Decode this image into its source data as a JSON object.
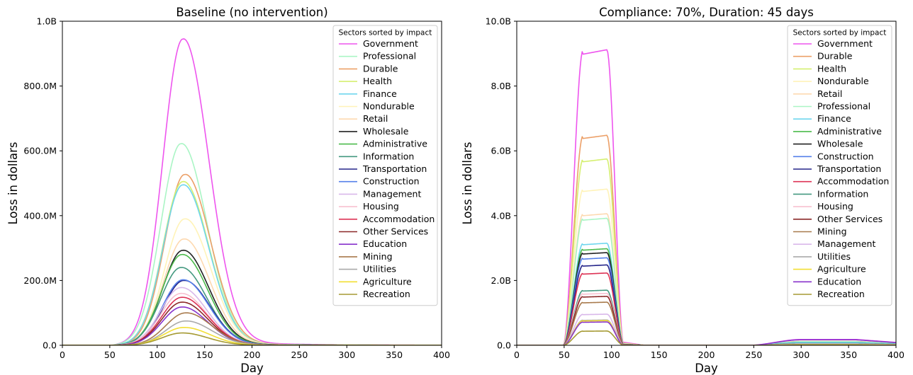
{
  "chart_data": [
    {
      "type": "line",
      "title": "Baseline (no intervention)",
      "xlabel": "Day",
      "ylabel": "Loss in dollars",
      "xlim": [
        0,
        400
      ],
      "ylim": [
        0,
        1000000000
      ],
      "xticks": [
        0,
        50,
        100,
        150,
        200,
        250,
        300,
        350,
        400
      ],
      "xtick_labels": [
        "0",
        "50",
        "100",
        "150",
        "200",
        "250",
        "300",
        "350",
        "400"
      ],
      "yticks": [
        0,
        200000000,
        400000000,
        600000000,
        800000000,
        1000000000
      ],
      "ytick_labels": [
        "0.0",
        "200.0M",
        "400.0M",
        "600.0M",
        "800.0M",
        "1.0B"
      ],
      "grid": false,
      "legend_title": "Sectors sorted by impact",
      "legend_position": "top-right",
      "curve_model": "epidemic",
      "series": [
        {
          "name": "Government",
          "color": "#ee55ee",
          "peak": 945000000,
          "peak_day": 127
        },
        {
          "name": "Professional",
          "color": "#aaf5c5",
          "peak": 622000000,
          "peak_day": 125
        },
        {
          "name": "Durable",
          "color": "#eca068",
          "peak": 527000000,
          "peak_day": 129
        },
        {
          "name": "Health",
          "color": "#d5ef70",
          "peak": 505000000,
          "peak_day": 127
        },
        {
          "name": "Finance",
          "color": "#6fd6ee",
          "peak": 495000000,
          "peak_day": 127
        },
        {
          "name": "Nondurable",
          "color": "#fff3b8",
          "peak": 390000000,
          "peak_day": 129
        },
        {
          "name": "Retail",
          "color": "#fdd9b0",
          "peak": 328000000,
          "peak_day": 128
        },
        {
          "name": "Wholesale",
          "color": "#222222",
          "peak": 293000000,
          "peak_day": 127
        },
        {
          "name": "Administrative",
          "color": "#4cbb4c",
          "peak": 280000000,
          "peak_day": 126
        },
        {
          "name": "Information",
          "color": "#449980",
          "peak": 240000000,
          "peak_day": 125
        },
        {
          "name": "Transportation",
          "color": "#25258a",
          "peak": 200000000,
          "peak_day": 128
        },
        {
          "name": "Construction",
          "color": "#5580ea",
          "peak": 202000000,
          "peak_day": 127
        },
        {
          "name": "Management",
          "color": "#d9b8ea",
          "peak": 178000000,
          "peak_day": 125
        },
        {
          "name": "Housing",
          "color": "#f8c0d0",
          "peak": 160000000,
          "peak_day": 125
        },
        {
          "name": "Accommodation",
          "color": "#dd3355",
          "peak": 148000000,
          "peak_day": 126
        },
        {
          "name": "Other Services",
          "color": "#8b2828",
          "peak": 133000000,
          "peak_day": 126
        },
        {
          "name": "Education",
          "color": "#8833cc",
          "peak": 118000000,
          "peak_day": 126
        },
        {
          "name": "Mining",
          "color": "#a87a4c",
          "peak": 100000000,
          "peak_day": 130
        },
        {
          "name": "Utilities",
          "color": "#aaaaaa",
          "peak": 75000000,
          "peak_day": 130
        },
        {
          "name": "Agriculture",
          "color": "#f2df33",
          "peak": 55000000,
          "peak_day": 128
        },
        {
          "name": "Recreation",
          "color": "#a59a33",
          "peak": 38000000,
          "peak_day": 126
        }
      ]
    },
    {
      "type": "line",
      "title": "Compliance: 70%, Duration: 45 days",
      "xlabel": "Day",
      "ylabel": "Loss in dollars",
      "xlim": [
        0,
        400
      ],
      "ylim": [
        0,
        10000000000
      ],
      "xticks": [
        0,
        50,
        100,
        150,
        200,
        250,
        300,
        350,
        400
      ],
      "xtick_labels": [
        "0",
        "50",
        "100",
        "150",
        "200",
        "250",
        "300",
        "350",
        "400"
      ],
      "yticks": [
        0,
        2000000000,
        4000000000,
        6000000000,
        8000000000,
        10000000000
      ],
      "ytick_labels": [
        "0.0",
        "2.0B",
        "4.0B",
        "6.0B",
        "8.0B",
        "10.0B"
      ],
      "grid": false,
      "legend_title": "Sectors sorted by impact",
      "legend_position": "top-right",
      "curve_model": "plateau",
      "plateau": {
        "rise_start": 49,
        "rise_end": 70,
        "flat_end": 95,
        "fall_end": 113
      },
      "series": [
        {
          "name": "Government",
          "color": "#ee55ee",
          "peak": 9120000000,
          "tail": 180000000
        },
        {
          "name": "Durable",
          "color": "#eca068",
          "peak": 6480000000,
          "tail": 120000000
        },
        {
          "name": "Health",
          "color": "#d5ef70",
          "peak": 5750000000,
          "tail": 110000000
        },
        {
          "name": "Nondurable",
          "color": "#fff3b8",
          "peak": 4820000000,
          "tail": 90000000
        },
        {
          "name": "Retail",
          "color": "#fdd9b0",
          "peak": 4060000000,
          "tail": 80000000
        },
        {
          "name": "Professional",
          "color": "#aaf5c5",
          "peak": 3920000000,
          "tail": 110000000
        },
        {
          "name": "Finance",
          "color": "#6fd6ee",
          "peak": 3150000000,
          "tail": 90000000
        },
        {
          "name": "Administrative",
          "color": "#4cbb4c",
          "peak": 2980000000,
          "tail": 60000000
        },
        {
          "name": "Wholesale",
          "color": "#222222",
          "peak": 2860000000,
          "tail": 55000000
        },
        {
          "name": "Construction",
          "color": "#5580ea",
          "peak": 2700000000,
          "tail": 55000000
        },
        {
          "name": "Transportation",
          "color": "#25258a",
          "peak": 2480000000,
          "tail": 50000000
        },
        {
          "name": "Accommodation",
          "color": "#dd3355",
          "peak": 2230000000,
          "tail": 45000000
        },
        {
          "name": "Information",
          "color": "#449980",
          "peak": 1700000000,
          "tail": 60000000
        },
        {
          "name": "Housing",
          "color": "#f8c0d0",
          "peak": 1600000000,
          "tail": 40000000
        },
        {
          "name": "Other Services",
          "color": "#8b2828",
          "peak": 1510000000,
          "tail": 35000000
        },
        {
          "name": "Mining",
          "color": "#a87a4c",
          "peak": 1330000000,
          "tail": 30000000
        },
        {
          "name": "Management",
          "color": "#d9b8ea",
          "peak": 960000000,
          "tail": 40000000
        },
        {
          "name": "Utilities",
          "color": "#aaaaaa",
          "peak": 780000000,
          "tail": 20000000
        },
        {
          "name": "Agriculture",
          "color": "#f2df33",
          "peak": 760000000,
          "tail": 20000000
        },
        {
          "name": "Education",
          "color": "#8833cc",
          "peak": 720000000,
          "tail": 170000000
        },
        {
          "name": "Recreation",
          "color": "#a59a33",
          "peak": 440000000,
          "tail": 15000000
        }
      ]
    }
  ]
}
